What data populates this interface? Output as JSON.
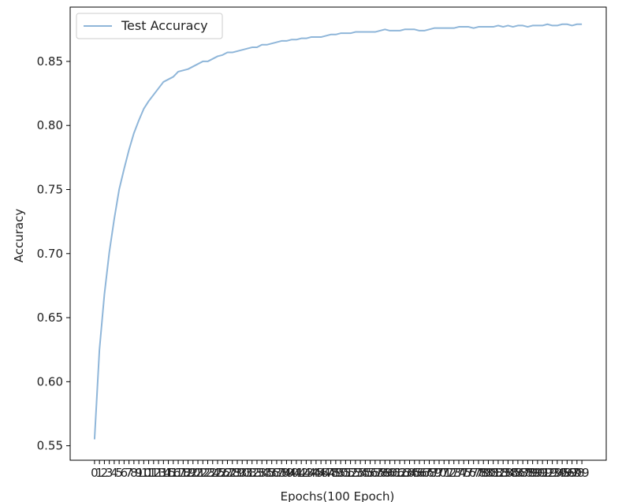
{
  "chart_data": {
    "type": "line",
    "title": "",
    "xlabel": "Epochs(100 Epoch)",
    "ylabel": "Accuracy",
    "xlim": [
      -4.95,
      103.95
    ],
    "ylim": [
      0.5387,
      0.8924
    ],
    "x_ticks": [
      0,
      1,
      2,
      3,
      4,
      5,
      6,
      7,
      8,
      9,
      10,
      11,
      12,
      13,
      14,
      15,
      16,
      17,
      18,
      19,
      20,
      21,
      22,
      23,
      24,
      25,
      26,
      27,
      28,
      29,
      30,
      31,
      32,
      33,
      34,
      35,
      36,
      37,
      38,
      39,
      40,
      41,
      42,
      43,
      44,
      45,
      46,
      47,
      48,
      49,
      50,
      51,
      52,
      53,
      54,
      55,
      56,
      57,
      58,
      59,
      60,
      61,
      62,
      63,
      64,
      65,
      66,
      67,
      68,
      69,
      70,
      71,
      72,
      73,
      74,
      75,
      76,
      77,
      78,
      79,
      80,
      81,
      82,
      83,
      84,
      85,
      86,
      87,
      88,
      89,
      90,
      91,
      92,
      93,
      94,
      95,
      96,
      97,
      98,
      99
    ],
    "y_ticks": [
      "0.55",
      "0.60",
      "0.65",
      "0.70",
      "0.75",
      "0.80",
      "0.85"
    ],
    "y_tick_values": [
      0.55,
      0.6,
      0.65,
      0.7,
      0.75,
      0.8,
      0.85
    ],
    "grid": false,
    "legend": "upper-left",
    "series": [
      {
        "name": "Test Accuracy",
        "color": "#8fb6d9",
        "x": [
          0,
          1,
          2,
          3,
          4,
          5,
          6,
          7,
          8,
          9,
          10,
          11,
          12,
          13,
          14,
          15,
          16,
          17,
          18,
          19,
          20,
          21,
          22,
          23,
          24,
          25,
          26,
          27,
          28,
          29,
          30,
          31,
          32,
          33,
          34,
          35,
          36,
          37,
          38,
          39,
          40,
          41,
          42,
          43,
          44,
          45,
          46,
          47,
          48,
          49,
          50,
          51,
          52,
          53,
          54,
          55,
          56,
          57,
          58,
          59,
          60,
          61,
          62,
          63,
          64,
          65,
          66,
          67,
          68,
          69,
          70,
          71,
          72,
          73,
          74,
          75,
          76,
          77,
          78,
          79,
          80,
          81,
          82,
          83,
          84,
          85,
          86,
          87,
          88,
          89,
          90,
          91,
          92,
          93,
          94,
          95,
          96,
          97,
          98,
          99
        ],
        "values": [
          0.555,
          0.625,
          0.668,
          0.701,
          0.727,
          0.75,
          0.766,
          0.781,
          0.794,
          0.804,
          0.813,
          0.819,
          0.824,
          0.829,
          0.834,
          0.836,
          0.838,
          0.842,
          0.843,
          0.844,
          0.846,
          0.848,
          0.85,
          0.85,
          0.852,
          0.854,
          0.855,
          0.857,
          0.857,
          0.858,
          0.859,
          0.86,
          0.861,
          0.861,
          0.863,
          0.863,
          0.864,
          0.865,
          0.866,
          0.866,
          0.867,
          0.867,
          0.868,
          0.868,
          0.869,
          0.869,
          0.869,
          0.87,
          0.871,
          0.871,
          0.872,
          0.872,
          0.872,
          0.873,
          0.873,
          0.873,
          0.873,
          0.873,
          0.874,
          0.875,
          0.874,
          0.874,
          0.874,
          0.875,
          0.875,
          0.875,
          0.874,
          0.874,
          0.875,
          0.876,
          0.876,
          0.876,
          0.876,
          0.876,
          0.877,
          0.877,
          0.877,
          0.876,
          0.877,
          0.877,
          0.877,
          0.877,
          0.878,
          0.877,
          0.878,
          0.877,
          0.878,
          0.878,
          0.877,
          0.878,
          0.878,
          0.878,
          0.879,
          0.878,
          0.878,
          0.879,
          0.879,
          0.878,
          0.879,
          0.879
        ]
      }
    ]
  }
}
